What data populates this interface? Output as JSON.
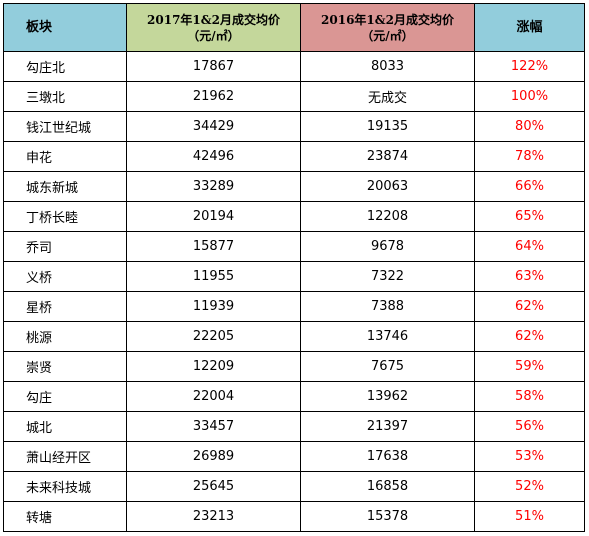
{
  "header": {
    "block": "板块",
    "price_2017_line1": "2017年1&2月成交均价",
    "price_2017_line2": "（元/㎡）",
    "price_2016_line1": "2016年1&2月成交均价",
    "price_2016_line2": "（元/㎡）",
    "growth": "涨幅"
  },
  "colors": {
    "header_block": "#92cddc",
    "header_2017": "#c4d79b",
    "header_2016": "#da9694",
    "growth_text": "#ff0000"
  },
  "rows": [
    {
      "name": "勾庄北",
      "p2017": "17867",
      "p2016": "8033",
      "growth": "122%"
    },
    {
      "name": "三墩北",
      "p2017": "21962",
      "p2016": "无成交",
      "growth": "100%"
    },
    {
      "name": "钱江世纪城",
      "p2017": "34429",
      "p2016": "19135",
      "growth": "80%"
    },
    {
      "name": "申花",
      "p2017": "42496",
      "p2016": "23874",
      "growth": "78%"
    },
    {
      "name": "城东新城",
      "p2017": "33289",
      "p2016": "20063",
      "growth": "66%"
    },
    {
      "name": "丁桥长睦",
      "p2017": "20194",
      "p2016": "12208",
      "growth": "65%"
    },
    {
      "name": "乔司",
      "p2017": "15877",
      "p2016": "9678",
      "growth": "64%"
    },
    {
      "name": "义桥",
      "p2017": "11955",
      "p2016": "7322",
      "growth": "63%"
    },
    {
      "name": "星桥",
      "p2017": "11939",
      "p2016": "7388",
      "growth": "62%"
    },
    {
      "name": "桃源",
      "p2017": "22205",
      "p2016": "13746",
      "growth": "62%"
    },
    {
      "name": "崇贤",
      "p2017": "12209",
      "p2016": "7675",
      "growth": "59%"
    },
    {
      "name": "勾庄",
      "p2017": "22004",
      "p2016": "13962",
      "growth": "58%"
    },
    {
      "name": "城北",
      "p2017": "33457",
      "p2016": "21397",
      "growth": "56%"
    },
    {
      "name": "萧山经开区",
      "p2017": "26989",
      "p2016": "17638",
      "growth": "53%"
    },
    {
      "name": "未来科技城",
      "p2017": "25645",
      "p2016": "16858",
      "growth": "52%"
    },
    {
      "name": "转塘",
      "p2017": "23213",
      "p2016": "15378",
      "growth": "51%"
    }
  ]
}
